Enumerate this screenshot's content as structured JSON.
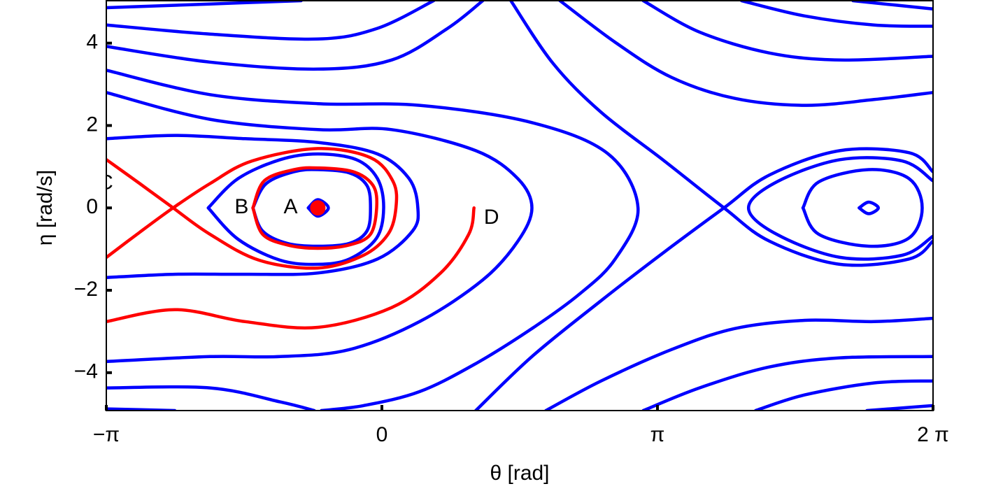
{
  "chart_data": {
    "type": "line",
    "xlabel": "θ [rad]",
    "ylabel": "η [rad/s]",
    "xlim": [
      -3.1416,
      6.2832
    ],
    "ylim": [
      -4.92,
      5.03
    ],
    "xticks": [
      {
        "value": -3.1416,
        "label": "−π"
      },
      0,
      {
        "value": 3.1416,
        "label": "π"
      },
      {
        "value": 6.2832,
        "label": "2 π"
      }
    ],
    "yticks": [
      {
        "value": -4,
        "label": "−4"
      },
      {
        "value": -2,
        "label": "−2"
      },
      0,
      2,
      4
    ],
    "series": [
      {
        "color": "#0000ff",
        "x": [
          -3.14,
          -1.96,
          -0.92
        ],
        "values": [
          4.86,
          4.95,
          5.03
        ]
      },
      {
        "color": "#0000ff",
        "x": [
          -3.14,
          -1.96,
          -0.73,
          -0.05,
          0.59
        ],
        "values": [
          4.44,
          4.22,
          4.1,
          4.36,
          5.03
        ]
      },
      {
        "color": "#0000ff",
        "x": [
          -3.14,
          -1.96,
          -0.73,
          0.11,
          0.75,
          1.15
        ],
        "values": [
          3.92,
          3.54,
          3.37,
          3.59,
          4.36,
          5.03
        ]
      },
      {
        "color": "#0000ff",
        "x": [
          -3.14,
          -1.96,
          -0.73,
          0.43,
          1.71,
          2.58,
          2.92,
          2.66,
          2.26,
          1.71,
          1.07,
          0.43,
          -0.21,
          -0.69
        ],
        "values": [
          3.34,
          2.75,
          2.53,
          2.49,
          2.07,
          1.31,
          0,
          -1.24,
          -2.08,
          -2.93,
          -3.78,
          -4.46,
          -4.8,
          -4.92
        ]
      },
      {
        "color": "#0000ff",
        "x": [
          -3.14,
          -1.96,
          -0.73,
          0.11,
          1.07,
          1.55,
          1.71,
          1.55,
          1.15,
          0.43,
          -0.37,
          -1.16,
          -1.96,
          -3.14
        ],
        "values": [
          2.8,
          2.15,
          1.9,
          1.9,
          1.39,
          0.71,
          0,
          -0.81,
          -1.75,
          -2.76,
          -3.44,
          -3.61,
          -3.61,
          -3.73
        ]
      },
      {
        "color": "#0000ff",
        "x": [
          -3.14,
          -2.36,
          -1.56,
          -0.73,
          -0.05,
          0.31,
          0.41,
          0.35,
          -0.05,
          -0.73,
          -1.56,
          -2.36,
          -3.14
        ],
        "values": [
          1.68,
          1.76,
          1.68,
          1.59,
          1.31,
          0.71,
          0,
          -0.56,
          -1.24,
          -1.58,
          -1.61,
          -1.61,
          -1.69
        ]
      },
      {
        "color": "#0000ff",
        "x": [
          -1.98,
          -1.64,
          -1.16,
          -0.73,
          -0.29,
          -0.05,
          0.02,
          -0.06,
          -0.37,
          -0.73,
          -1.16,
          -1.64,
          -1.98
        ],
        "values": [
          0,
          0.71,
          1.17,
          1.31,
          1.17,
          0.71,
          0,
          -0.73,
          -1.24,
          -1.37,
          -1.27,
          -0.76,
          0
        ]
      },
      {
        "color": "#0000ff",
        "x": [
          -1.47,
          -1.32,
          -1.0,
          -0.73,
          -0.37,
          -0.17,
          -0.13,
          -0.17,
          -0.37,
          -0.73,
          -1.08,
          -1.36,
          -1.47
        ],
        "values": [
          0,
          0.59,
          0.88,
          0.93,
          0.85,
          0.54,
          0,
          -0.56,
          -0.86,
          -0.93,
          -0.86,
          -0.56,
          0
        ]
      },
      {
        "color": "#0000ff",
        "x": [
          -0.84,
          -0.73,
          -0.61,
          -0.73,
          -0.84
        ],
        "values": [
          0,
          0.2,
          0,
          -0.2,
          0
        ]
      },
      {
        "color": "#0000ff",
        "x": [
          -3.14,
          -1.96,
          -1.16,
          -0.77
        ],
        "values": [
          -4.37,
          -4.37,
          -4.71,
          -4.92
        ]
      },
      {
        "color": "#0000ff",
        "x": [
          -3.14,
          -2.36
        ],
        "values": [
          -4.88,
          -4.92
        ]
      },
      {
        "color": "#0000ff",
        "x": [
          1.47,
          1.95,
          2.5,
          3.22,
          3.9,
          4.42,
          5.22,
          6.01,
          6.28
        ],
        "values": [
          5.03,
          3.51,
          2.32,
          1.14,
          0,
          -0.81,
          -1.37,
          -1.24,
          -0.81
        ]
      },
      {
        "color": "#0000ff",
        "x": [
          1.07,
          1.71,
          2.5,
          3.22,
          3.9,
          4.42,
          5.22,
          6.01,
          6.28
        ],
        "values": [
          -4.92,
          -3.61,
          -2.25,
          -1.07,
          0,
          0.8,
          1.39,
          1.34,
          0.88
        ]
      },
      {
        "color": "#0000ff",
        "x": [
          2.03,
          2.66,
          3.3,
          4.02,
          4.82,
          5.61,
          6.28
        ],
        "values": [
          5.03,
          4.02,
          3.17,
          2.66,
          2.49,
          2.63,
          2.8
        ]
      },
      {
        "color": "#0000ff",
        "x": [
          2.98,
          3.62,
          4.42,
          5.22,
          6.28
        ],
        "values": [
          5.03,
          4.27,
          3.76,
          3.59,
          3.68
        ]
      },
      {
        "color": "#0000ff",
        "x": [
          4.1,
          4.82,
          5.61,
          6.28
        ],
        "values": [
          5.03,
          4.66,
          4.44,
          4.41
        ]
      },
      {
        "color": "#0000ff",
        "x": [
          5.37,
          6.28
        ],
        "values": [
          5.03,
          4.83
        ]
      },
      {
        "color": "#0000ff",
        "x": [
          1.87,
          2.5,
          3.3,
          4.02,
          4.82,
          5.61,
          6.28
        ],
        "values": [
          -4.92,
          -4.2,
          -3.44,
          -2.93,
          -2.73,
          -2.76,
          -2.68
        ]
      },
      {
        "color": "#0000ff",
        "x": [
          2.98,
          3.62,
          4.42,
          5.22,
          6.28
        ],
        "values": [
          -4.92,
          -4.37,
          -3.86,
          -3.64,
          -3.61
        ]
      },
      {
        "color": "#0000ff",
        "x": [
          4.26,
          4.82,
          5.61,
          6.28
        ],
        "values": [
          -4.92,
          -4.54,
          -4.25,
          -4.2
        ]
      },
      {
        "color": "#0000ff",
        "x": [
          5.53,
          6.28
        ],
        "values": [
          -4.92,
          -4.8
        ]
      },
      {
        "color": "#0000ff",
        "x": [
          6.28,
          5.93,
          5.22,
          4.5,
          4.18,
          4.5,
          5.22,
          5.93,
          6.28
        ],
        "values": [
          0.66,
          1.14,
          1.17,
          0.63,
          0,
          -0.64,
          -1.2,
          -1.15,
          -0.69
        ]
      },
      {
        "color": "#0000ff",
        "x": [
          4.8,
          4.98,
          5.55,
          6.01,
          6.16,
          6.01,
          5.55,
          4.98,
          4.8
        ],
        "values": [
          0,
          0.63,
          0.93,
          0.71,
          0,
          -0.73,
          -0.93,
          -0.64,
          0
        ]
      },
      {
        "color": "#0000ff",
        "x": [
          5.44,
          5.55,
          5.66,
          5.55,
          5.44
        ],
        "values": [
          0,
          0.14,
          0,
          -0.14,
          0
        ]
      },
      {
        "color": "#ff0000",
        "x": [
          -3.14,
          -2.76,
          -2.38,
          -1.96,
          -1.4,
          -0.73,
          -0.21,
          0.07,
          0.16,
          0.13,
          -0.13,
          -0.73,
          -1.48,
          -1.96,
          -2.38,
          -2.76,
          -3.14
        ],
        "values": [
          1.17,
          0.59,
          0,
          -0.64,
          -1.27,
          -1.46,
          -1.15,
          -0.64,
          0,
          0.63,
          1.22,
          1.44,
          1.14,
          0.59,
          0,
          -0.59,
          -1.2
        ]
      },
      {
        "color": "#ff0000",
        "x": [
          -1.47,
          -1.34,
          -1.0,
          -0.73,
          -0.33,
          -0.1,
          -0.06,
          -0.13,
          -0.37,
          -0.73,
          -1.08,
          -1.36,
          -1.47
        ],
        "values": [
          0,
          0.66,
          0.93,
          0.97,
          0.88,
          0.54,
          0,
          -0.64,
          -0.9,
          -0.98,
          -0.9,
          -0.64,
          0
        ]
      },
      {
        "color": "#ff0000",
        "x": [
          1.05,
          0.99,
          0.67,
          0.11,
          -0.73,
          -1.56,
          -2.36,
          -3.14
        ],
        "values": [
          0,
          -0.64,
          -1.58,
          -2.42,
          -2.9,
          -2.76,
          -2.47,
          -2.76
        ]
      },
      {
        "color": "#ff0000",
        "marker": true,
        "x": [
          -0.73
        ],
        "values": [
          0
        ]
      }
    ],
    "annotations": [
      {
        "text": "A",
        "x": -1.04,
        "y": 0
      },
      {
        "text": "B",
        "x": -1.6,
        "y": 0
      },
      {
        "text": "C",
        "x": -3.15,
        "y": 0.59
      },
      {
        "text": "D",
        "x": 1.25,
        "y": -0.25
      }
    ]
  }
}
